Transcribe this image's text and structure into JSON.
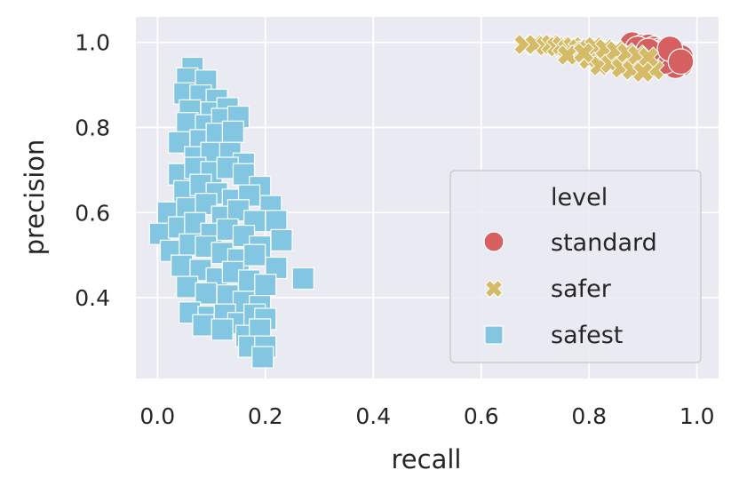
{
  "chart_data": {
    "type": "scatter",
    "title": "",
    "xlabel": "recall",
    "ylabel": "precision",
    "xlim": [
      -0.04,
      1.04
    ],
    "ylim": [
      0.21,
      1.06
    ],
    "xticks": [
      0.0,
      0.2,
      0.4,
      0.6,
      0.8,
      1.0
    ],
    "xtick_labels": [
      "0.0",
      "0.2",
      "0.4",
      "0.6",
      "0.8",
      "1.0"
    ],
    "yticks": [
      0.4,
      0.6,
      0.8,
      1.0
    ],
    "ytick_labels": [
      "0.4",
      "0.6",
      "0.8",
      "1.0"
    ],
    "grid": true,
    "legend": {
      "title": "level",
      "placement": "lower-right",
      "entries": [
        "standard",
        "safer",
        "safest"
      ]
    },
    "colors": {
      "background": "#eaeaf2",
      "grid": "#ffffff",
      "standard": "#d65f5f",
      "safer": "#d5bb67",
      "safest": "#82c6e2"
    },
    "series": [
      {
        "name": "standard",
        "marker": "circle",
        "points": [
          [
            0.88,
            0.995
          ],
          [
            0.9,
            0.99
          ],
          [
            0.91,
            0.99
          ],
          [
            0.92,
            0.985
          ],
          [
            0.93,
            0.98
          ],
          [
            0.94,
            0.98
          ],
          [
            0.95,
            0.975
          ],
          [
            0.96,
            0.97
          ],
          [
            0.97,
            0.965
          ],
          [
            0.93,
            0.97
          ],
          [
            0.95,
            0.96
          ],
          [
            0.96,
            0.955
          ],
          [
            0.97,
            0.95
          ],
          [
            0.96,
            0.945
          ],
          [
            0.94,
            0.955
          ],
          [
            0.92,
            0.975
          ],
          [
            0.89,
            0.985
          ],
          [
            0.91,
            0.98
          ],
          [
            0.95,
            0.985
          ],
          [
            0.97,
            0.955
          ]
        ]
      },
      {
        "name": "safer",
        "marker": "x",
        "points": [
          [
            0.68,
            0.995
          ],
          [
            0.7,
            0.995
          ],
          [
            0.72,
            0.992
          ],
          [
            0.73,
            0.995
          ],
          [
            0.74,
            0.99
          ],
          [
            0.75,
            0.992
          ],
          [
            0.76,
            0.985
          ],
          [
            0.77,
            0.99
          ],
          [
            0.78,
            0.985
          ],
          [
            0.79,
            0.98
          ],
          [
            0.8,
            0.985
          ],
          [
            0.81,
            0.975
          ],
          [
            0.82,
            0.98
          ],
          [
            0.83,
            0.97
          ],
          [
            0.84,
            0.975
          ],
          [
            0.85,
            0.965
          ],
          [
            0.86,
            0.97
          ],
          [
            0.87,
            0.96
          ],
          [
            0.88,
            0.955
          ],
          [
            0.89,
            0.95
          ],
          [
            0.9,
            0.945
          ],
          [
            0.91,
            0.94
          ],
          [
            0.92,
            0.935
          ],
          [
            0.8,
            0.96
          ],
          [
            0.82,
            0.945
          ],
          [
            0.84,
            0.95
          ],
          [
            0.86,
            0.94
          ],
          [
            0.88,
            0.935
          ],
          [
            0.81,
            0.99
          ],
          [
            0.83,
            0.985
          ],
          [
            0.85,
            0.98
          ],
          [
            0.87,
            0.975
          ],
          [
            0.89,
            0.97
          ],
          [
            0.91,
            0.965
          ],
          [
            0.76,
            0.97
          ],
          [
            0.79,
            0.975
          ],
          [
            0.9,
            0.93
          ]
        ]
      },
      {
        "name": "safest",
        "marker": "square",
        "points": [
          [
            0.065,
            0.94
          ],
          [
            0.055,
            0.915
          ],
          [
            0.09,
            0.91
          ],
          [
            0.05,
            0.88
          ],
          [
            0.08,
            0.875
          ],
          [
            0.11,
            0.865
          ],
          [
            0.06,
            0.84
          ],
          [
            0.1,
            0.835
          ],
          [
            0.13,
            0.845
          ],
          [
            0.055,
            0.81
          ],
          [
            0.09,
            0.805
          ],
          [
            0.12,
            0.82
          ],
          [
            0.15,
            0.825
          ],
          [
            0.04,
            0.765
          ],
          [
            0.08,
            0.77
          ],
          [
            0.11,
            0.785
          ],
          [
            0.14,
            0.79
          ],
          [
            0.07,
            0.73
          ],
          [
            0.1,
            0.74
          ],
          [
            0.135,
            0.74
          ],
          [
            0.16,
            0.715
          ],
          [
            0.04,
            0.69
          ],
          [
            0.07,
            0.705
          ],
          [
            0.1,
            0.695
          ],
          [
            0.13,
            0.705
          ],
          [
            0.16,
            0.69
          ],
          [
            0.19,
            0.66
          ],
          [
            0.05,
            0.65
          ],
          [
            0.08,
            0.665
          ],
          [
            0.11,
            0.645
          ],
          [
            0.14,
            0.63
          ],
          [
            0.17,
            0.64
          ],
          [
            0.21,
            0.615
          ],
          [
            0.02,
            0.6
          ],
          [
            0.055,
            0.61
          ],
          [
            0.09,
            0.62
          ],
          [
            0.12,
            0.59
          ],
          [
            0.15,
            0.605
          ],
          [
            0.18,
            0.58
          ],
          [
            0.22,
            0.58
          ],
          [
            0.005,
            0.55
          ],
          [
            0.04,
            0.565
          ],
          [
            0.07,
            0.575
          ],
          [
            0.1,
            0.55
          ],
          [
            0.13,
            0.56
          ],
          [
            0.16,
            0.545
          ],
          [
            0.19,
            0.52
          ],
          [
            0.23,
            0.535
          ],
          [
            0.025,
            0.51
          ],
          [
            0.06,
            0.525
          ],
          [
            0.09,
            0.52
          ],
          [
            0.12,
            0.505
          ],
          [
            0.15,
            0.49
          ],
          [
            0.18,
            0.5
          ],
          [
            0.22,
            0.47
          ],
          [
            0.045,
            0.475
          ],
          [
            0.08,
            0.465
          ],
          [
            0.11,
            0.445
          ],
          [
            0.14,
            0.46
          ],
          [
            0.17,
            0.44
          ],
          [
            0.2,
            0.43
          ],
          [
            0.27,
            0.445
          ],
          [
            0.055,
            0.425
          ],
          [
            0.09,
            0.41
          ],
          [
            0.13,
            0.405
          ],
          [
            0.16,
            0.39
          ],
          [
            0.19,
            0.38
          ],
          [
            0.06,
            0.365
          ],
          [
            0.095,
            0.355
          ],
          [
            0.125,
            0.36
          ],
          [
            0.15,
            0.34
          ],
          [
            0.18,
            0.36
          ],
          [
            0.2,
            0.35
          ],
          [
            0.085,
            0.335
          ],
          [
            0.12,
            0.325
          ],
          [
            0.165,
            0.31
          ],
          [
            0.19,
            0.325
          ],
          [
            0.17,
            0.285
          ],
          [
            0.2,
            0.285
          ],
          [
            0.195,
            0.26
          ]
        ]
      }
    ]
  }
}
